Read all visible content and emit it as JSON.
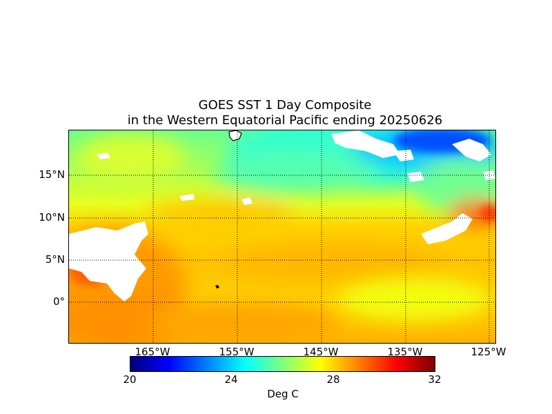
{
  "title": {
    "line1": "GOES SST 1 Day Composite",
    "line2": "in the Western Equatorial Pacific ending 20250626"
  },
  "map": {
    "lat_labels": [
      "15°N",
      "10°N",
      "5°N",
      "0°"
    ],
    "lon_labels": [
      "165°W",
      "155°W",
      "145°W",
      "135°W",
      "125°W"
    ],
    "gridlines": "dotted",
    "missing_data_color": "#ffffff",
    "land_color": "#ffffff"
  },
  "colorbar": {
    "ticks": [
      "20",
      "24",
      "28",
      "32"
    ],
    "unit": "Deg C",
    "colormap": "jet",
    "colors": [
      "#00007f",
      "#0000ff",
      "#007fff",
      "#00ffff",
      "#7fff7f",
      "#ffff00",
      "#ff7f00",
      "#ff0000",
      "#7f0000"
    ]
  }
}
